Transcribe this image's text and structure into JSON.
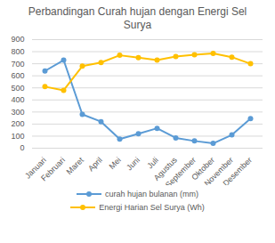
{
  "chart_data": {
    "type": "line",
    "title": "Perbandingan Curah hujan dengan Energi Sel Surya",
    "categories": [
      "Januari",
      "Februari",
      "Maret",
      "April",
      "Mei",
      "Juni",
      "Juli",
      "Agustus",
      "September",
      "Oktober",
      "November",
      "Desember"
    ],
    "series": [
      {
        "name": "curah hujan bulanan (mm)",
        "color": "#5b9bd5",
        "marker": "circle",
        "line_style": "solid",
        "values": [
          640,
          730,
          280,
          220,
          75,
          120,
          165,
          85,
          60,
          40,
          110,
          245
        ]
      },
      {
        "name": "Energi Harian Sel Surya (Wh)",
        "color": "#ffc000",
        "marker": "circle",
        "line_style": "solid",
        "values": [
          510,
          480,
          680,
          710,
          770,
          750,
          730,
          760,
          775,
          785,
          755,
          700
        ]
      }
    ],
    "ylim": [
      0,
      900
    ],
    "yticks": [
      0,
      100,
      200,
      300,
      400,
      500,
      600,
      700,
      800,
      900
    ],
    "grid": true,
    "legend": "bottom"
  }
}
